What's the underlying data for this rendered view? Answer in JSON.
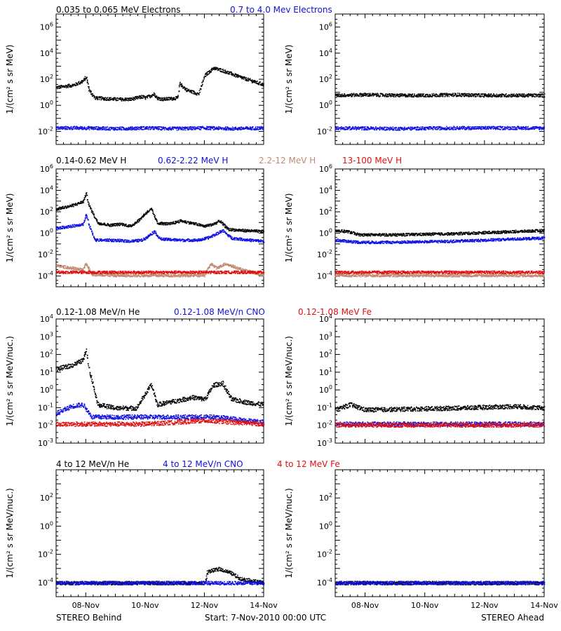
{
  "colors": {
    "black": "#000000",
    "blue": "#1010e0",
    "tan": "#c08a70",
    "red": "#e01010"
  },
  "footer": {
    "left": "STEREO Behind",
    "center": "Start:  7-Nov-2010 00:00 UTC",
    "right": "STEREO Ahead"
  },
  "x_ticks": [
    "08-Nov",
    "10-Nov",
    "12-Nov",
    "14-Nov"
  ],
  "chart_data": [
    {
      "type": "scatter",
      "row": 0,
      "titles": [
        {
          "text": "0.035 to 0.065 MeV Electrons",
          "color": "black"
        },
        {
          "text": "0.7 to 4.0 Mev Electrons",
          "color": "blue"
        }
      ],
      "ylabel": "1/(cm² s sr MeV)",
      "yscale": "log",
      "ylim_exp": [
        -3,
        7
      ],
      "y_ticks_exp": [
        -2,
        0,
        2,
        4,
        6
      ],
      "xlim_days": [
        0,
        7
      ],
      "behind": {
        "series": [
          {
            "name": "0.035 to 0.065 MeV Electrons",
            "color": "black",
            "points": [
              [
                0,
                1.4
              ],
              [
                0.6,
                1.6
              ],
              [
                0.9,
                1.9
              ],
              [
                1.0,
                2.2
              ],
              [
                1.1,
                1.2
              ],
              [
                1.3,
                0.6
              ],
              [
                2.0,
                0.5
              ],
              [
                2.5,
                0.5
              ],
              [
                2.9,
                0.7
              ],
              [
                3.0,
                0.6
              ],
              [
                3.3,
                0.9
              ],
              [
                3.4,
                0.6
              ],
              [
                3.6,
                0.5
              ],
              [
                4.1,
                0.6
              ],
              [
                4.15,
                1.7
              ],
              [
                4.4,
                1.2
              ],
              [
                4.8,
                0.9
              ],
              [
                5.0,
                2.3
              ],
              [
                5.3,
                2.9
              ],
              [
                5.6,
                2.7
              ],
              [
                6.2,
                2.2
              ],
              [
                7.0,
                1.6
              ]
            ]
          },
          {
            "name": "0.7 to 4.0 Mev Electrons",
            "color": "blue",
            "points": [
              [
                0,
                -1.7
              ],
              [
                1,
                -1.7
              ],
              [
                2,
                -1.75
              ],
              [
                3,
                -1.7
              ],
              [
                4,
                -1.75
              ],
              [
                5,
                -1.7
              ],
              [
                6,
                -1.75
              ],
              [
                7,
                -1.7
              ]
            ]
          }
        ]
      },
      "ahead": {
        "series": [
          {
            "name": "0.035 to 0.065 MeV Electrons",
            "color": "black",
            "points": [
              [
                0,
                0.8
              ],
              [
                1,
                0.85
              ],
              [
                2,
                0.8
              ],
              [
                3,
                0.8
              ],
              [
                4,
                0.85
              ],
              [
                5,
                0.8
              ],
              [
                6,
                0.8
              ],
              [
                7,
                0.8
              ]
            ]
          },
          {
            "name": "0.7 to 4.0 Mev Electrons",
            "color": "blue",
            "points": [
              [
                0,
                -1.7
              ],
              [
                2,
                -1.75
              ],
              [
                4,
                -1.7
              ],
              [
                7,
                -1.7
              ]
            ]
          }
        ]
      }
    },
    {
      "type": "scatter",
      "row": 1,
      "titles": [
        {
          "text": "0.14-0.62 MeV H",
          "color": "black"
        },
        {
          "text": "0.62-2.22 MeV H",
          "color": "blue"
        },
        {
          "text": "2.2-12 MeV H",
          "color": "tan"
        },
        {
          "text": "13-100 MeV H",
          "color": "red"
        }
      ],
      "ylabel": "1/(cm² s sr MeV)",
      "yscale": "log",
      "ylim_exp": [
        -5,
        6
      ],
      "y_ticks_exp": [
        -4,
        -2,
        0,
        2,
        4,
        6
      ],
      "xlim_days": [
        0,
        7
      ],
      "behind": {
        "series": [
          {
            "name": "0.14-0.62 MeV H",
            "color": "black",
            "points": [
              [
                0,
                2.3
              ],
              [
                0.5,
                2.6
              ],
              [
                0.9,
                3.0
              ],
              [
                1.0,
                3.8
              ],
              [
                1.1,
                2.6
              ],
              [
                1.4,
                1.0
              ],
              [
                1.8,
                0.8
              ],
              [
                2.2,
                0.9
              ],
              [
                2.5,
                0.7
              ],
              [
                2.8,
                1.3
              ],
              [
                3.0,
                1.9
              ],
              [
                3.2,
                2.3
              ],
              [
                3.4,
                1.0
              ],
              [
                3.8,
                0.9
              ],
              [
                4.2,
                1.2
              ],
              [
                4.7,
                0.9
              ],
              [
                5.0,
                0.7
              ],
              [
                5.3,
                0.9
              ],
              [
                5.5,
                1.2
              ],
              [
                5.8,
                0.4
              ],
              [
                6.3,
                0.3
              ],
              [
                7.0,
                0.2
              ]
            ]
          },
          {
            "name": "0.62-2.22 MeV H",
            "color": "blue",
            "points": [
              [
                0,
                0.5
              ],
              [
                0.5,
                0.7
              ],
              [
                0.9,
                0.9
              ],
              [
                1.0,
                1.8
              ],
              [
                1.1,
                0.8
              ],
              [
                1.3,
                -0.6
              ],
              [
                1.8,
                -0.6
              ],
              [
                2.5,
                -0.7
              ],
              [
                2.9,
                -0.6
              ],
              [
                3.1,
                -0.2
              ],
              [
                3.3,
                0.2
              ],
              [
                3.5,
                -0.5
              ],
              [
                4.2,
                -0.6
              ],
              [
                4.8,
                -0.6
              ],
              [
                5.1,
                -0.4
              ],
              [
                5.4,
                0.0
              ],
              [
                5.6,
                0.3
              ],
              [
                5.9,
                -0.4
              ],
              [
                6.5,
                -0.6
              ],
              [
                7.0,
                -0.7
              ]
            ]
          },
          {
            "name": "2.2-12 MeV H",
            "color": "tan",
            "points": [
              [
                0,
                -3.0
              ],
              [
                0.5,
                -3.2
              ],
              [
                0.9,
                -3.4
              ],
              [
                1.0,
                -2.8
              ],
              [
                1.2,
                -3.8
              ],
              [
                2.0,
                -3.9
              ],
              [
                3.0,
                -3.9
              ],
              [
                4.5,
                -3.9
              ],
              [
                5.0,
                -3.9
              ],
              [
                5.2,
                -2.8
              ],
              [
                5.4,
                -3.2
              ],
              [
                5.7,
                -2.8
              ],
              [
                6.3,
                -3.4
              ],
              [
                7.0,
                -3.9
              ]
            ]
          },
          {
            "name": "13-100 MeV H",
            "color": "red",
            "points": [
              [
                0,
                -3.6
              ],
              [
                2,
                -3.6
              ],
              [
                4,
                -3.6
              ],
              [
                5,
                -3.6
              ],
              [
                7,
                -3.6
              ]
            ]
          }
        ]
      },
      "ahead": {
        "series": [
          {
            "name": "0.14-0.62 MeV H",
            "color": "black",
            "points": [
              [
                0,
                0.3
              ],
              [
                0.4,
                0.2
              ],
              [
                0.8,
                -0.1
              ],
              [
                2,
                -0.1
              ],
              [
                4,
                0.0
              ],
              [
                5,
                0.1
              ],
              [
                6,
                0.2
              ],
              [
                7,
                0.3
              ]
            ]
          },
          {
            "name": "0.62-2.22 MeV H",
            "color": "blue",
            "points": [
              [
                0,
                -0.6
              ],
              [
                0.8,
                -0.8
              ],
              [
                2,
                -0.8
              ],
              [
                4,
                -0.7
              ],
              [
                6,
                -0.5
              ],
              [
                7,
                -0.4
              ]
            ]
          },
          {
            "name": "2.2-12 MeV H",
            "color": "tan",
            "points": [
              [
                0,
                -3.9
              ],
              [
                3,
                -3.9
              ],
              [
                7,
                -3.9
              ]
            ]
          },
          {
            "name": "13-100 MeV H",
            "color": "red",
            "points": [
              [
                0,
                -3.6
              ],
              [
                3,
                -3.6
              ],
              [
                7,
                -3.6
              ]
            ]
          }
        ]
      }
    },
    {
      "type": "scatter",
      "row": 2,
      "titles": [
        {
          "text": "0.12-1.08 MeV/n He",
          "color": "black"
        },
        {
          "text": "0.12-1.08 MeV/n CNO",
          "color": "blue"
        },
        {
          "text": "0.12-1.08 MeV Fe",
          "color": "red"
        }
      ],
      "ylabel": "1/(cm² s sr MeV/nuc.)",
      "yscale": "log",
      "ylim_exp": [
        -3,
        4
      ],
      "y_ticks_exp": [
        -3,
        -2,
        -1,
        0,
        1,
        2,
        3,
        4
      ],
      "xlim_days": [
        0,
        7
      ],
      "behind": {
        "series": [
          {
            "name": "0.12-1.08 MeV/n He",
            "color": "black",
            "points": [
              [
                0,
                1.2
              ],
              [
                0.5,
                1.4
              ],
              [
                0.9,
                1.7
              ],
              [
                1.0,
                2.3
              ],
              [
                1.1,
                1.2
              ],
              [
                1.4,
                -0.8
              ],
              [
                2.0,
                -1.0
              ],
              [
                2.7,
                -1.0
              ],
              [
                3.0,
                -0.2
              ],
              [
                3.2,
                0.3
              ],
              [
                3.4,
                -0.8
              ],
              [
                4.0,
                -0.6
              ],
              [
                4.6,
                -0.4
              ],
              [
                5.0,
                -0.5
              ],
              [
                5.3,
                0.3
              ],
              [
                5.6,
                0.4
              ],
              [
                5.9,
                -0.5
              ],
              [
                6.5,
                -0.7
              ],
              [
                7.0,
                -0.8
              ]
            ]
          },
          {
            "name": "0.12-1.08 MeV/n CNO",
            "color": "blue",
            "points": [
              [
                0,
                -1.3
              ],
              [
                0.5,
                -0.9
              ],
              [
                0.9,
                -0.8
              ],
              [
                1.2,
                -1.5
              ],
              [
                3.1,
                -1.5
              ],
              [
                5.4,
                -1.5
              ],
              [
                7.0,
                -1.8
              ]
            ]
          },
          {
            "name": "0.12-1.08 MeV Fe",
            "color": "red",
            "points": [
              [
                0,
                -1.9
              ],
              [
                1,
                -1.9
              ],
              [
                3,
                -1.9
              ],
              [
                5,
                -1.7
              ],
              [
                7,
                -1.9
              ]
            ]
          }
        ]
      },
      "ahead": {
        "series": [
          {
            "name": "0.12-1.08 MeV/n He",
            "color": "black",
            "points": [
              [
                0,
                -1.1
              ],
              [
                0.5,
                -0.8
              ],
              [
                1,
                -1.1
              ],
              [
                4,
                -1.0
              ],
              [
                6,
                -0.9
              ],
              [
                7,
                -1.0
              ]
            ]
          },
          {
            "name": "0.12-1.08 MeV/n CNO",
            "color": "blue",
            "points": [
              [
                0,
                -1.9
              ],
              [
                7,
                -1.9
              ]
            ]
          },
          {
            "name": "0.12-1.08 MeV Fe",
            "color": "red",
            "points": [
              [
                0,
                -1.95
              ],
              [
                7,
                -1.95
              ]
            ]
          }
        ]
      }
    },
    {
      "type": "scatter",
      "row": 3,
      "titles": [
        {
          "text": "4 to 12 MeV/n He",
          "color": "black"
        },
        {
          "text": "4 to 12 MeV/n CNO",
          "color": "blue"
        },
        {
          "text": "4 to 12 MeV Fe",
          "color": "red"
        }
      ],
      "ylabel": "1/(cm² s sr MeV/nuc.)",
      "yscale": "log",
      "ylim_exp": [
        -5,
        4
      ],
      "y_ticks_exp": [
        -4,
        -2,
        0,
        2
      ],
      "xlim_days": [
        0,
        7
      ],
      "behind": {
        "series": [
          {
            "name": "4 to 12 MeV/n He",
            "color": "black",
            "points": [
              [
                0,
                -4.0
              ],
              [
                5.0,
                -4.0
              ],
              [
                5.1,
                -3.2
              ],
              [
                5.5,
                -3.0
              ],
              [
                5.9,
                -3.3
              ],
              [
                6.2,
                -3.7
              ],
              [
                7.0,
                -4.0
              ]
            ]
          },
          {
            "name": "4 to 12 MeV/n CNO",
            "color": "blue",
            "points": [
              [
                0,
                -4.0
              ],
              [
                7,
                -4.0
              ]
            ]
          }
        ]
      },
      "ahead": {
        "series": [
          {
            "name": "4 to 12 MeV/n He",
            "color": "black",
            "points": [
              [
                0,
                -4.0
              ],
              [
                7,
                -4.0
              ]
            ]
          },
          {
            "name": "4 to 12 MeV/n CNO",
            "color": "blue",
            "points": [
              [
                0,
                -4.0
              ],
              [
                7,
                -4.0
              ]
            ]
          }
        ]
      }
    }
  ]
}
